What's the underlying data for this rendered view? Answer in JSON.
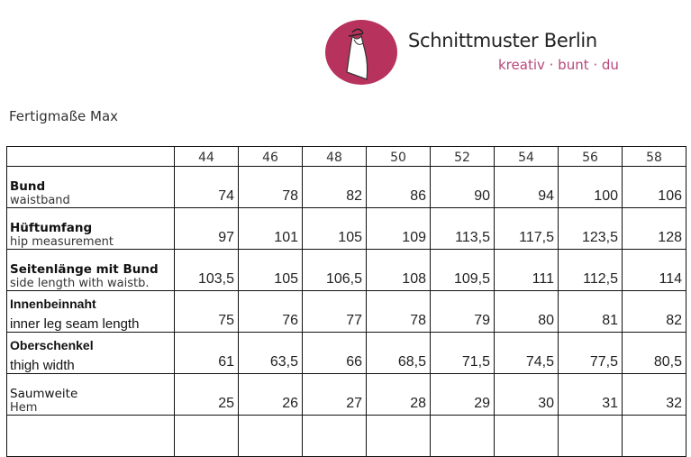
{
  "brand": {
    "name": "Schnittmuster Berlin",
    "tagline": "kreativ · bunt · du",
    "color": "#b8325e",
    "logo_icon": "dress-on-hanger-icon"
  },
  "title": "Fertigmaße Max",
  "table": {
    "sizes": [
      "44",
      "46",
      "48",
      "50",
      "52",
      "54",
      "56",
      "58"
    ],
    "rows": [
      {
        "de": "Bund",
        "en": "waistband",
        "values": [
          "74",
          "78",
          "82",
          "86",
          "90",
          "94",
          "100",
          "106"
        ],
        "style": "bold"
      },
      {
        "de": "Hüftumfang",
        "en": "hip measurement",
        "values": [
          "97",
          "101",
          "105",
          "109",
          "113,5",
          "117,5",
          "123,5",
          "128"
        ],
        "style": "bold"
      },
      {
        "de": "Seitenlänge mit Bund",
        "en": "side length with waistb.",
        "values": [
          "103,5",
          "105",
          "106,5",
          "108",
          "109,5",
          "111",
          "112,5",
          "114"
        ],
        "style": "bold"
      },
      {
        "de": "Innenbeinnaht",
        "en": "inner leg seam length",
        "values": [
          "75",
          "76",
          "77",
          "78",
          "79",
          "80",
          "81",
          "82"
        ],
        "style": "calibri"
      },
      {
        "de": "Oberschenkel",
        "en": "thigh width",
        "values": [
          "61",
          "63,5",
          "66",
          "68,5",
          "71,5",
          "74,5",
          "77,5",
          "80,5"
        ],
        "style": "calibri"
      },
      {
        "de": "Saumweite",
        "en": "Hem",
        "values": [
          "25",
          "26",
          "27",
          "28",
          "29",
          "30",
          "31",
          "32"
        ],
        "style": "plain"
      },
      {
        "de": "",
        "en": "",
        "values": [
          "",
          "",
          "",
          "",
          "",
          "",
          "",
          ""
        ],
        "style": "plain"
      }
    ]
  }
}
